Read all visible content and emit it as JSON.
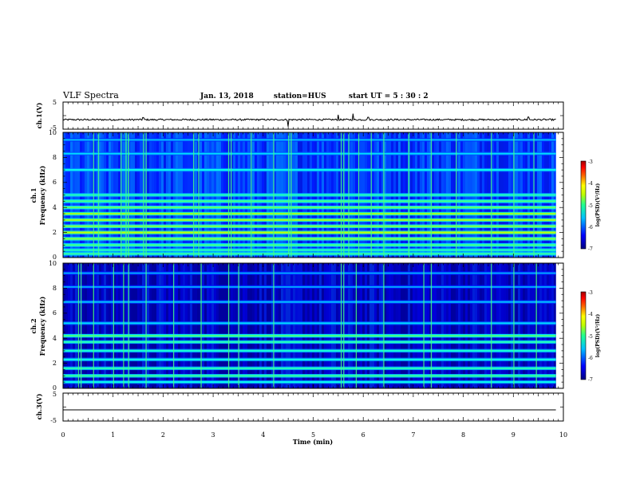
{
  "header": {
    "title": "VLF Spectra",
    "date": "Jan. 13, 2018",
    "station": "station=HUS",
    "start": "start UT =  5 : 30 : 2"
  },
  "colors": {
    "background": "#ffffff",
    "ink": "#000000",
    "spectrogram_base": "#00007f",
    "colormap": [
      "#00008f",
      "#0000ff",
      "#0080ff",
      "#00ffff",
      "#80ff80",
      "#ffff00",
      "#ff8000",
      "#ff0000",
      "#800000"
    ]
  },
  "chart_data": [
    {
      "type": "line",
      "id": "ch1-waveform",
      "ylabel": "ch.1(V)",
      "ylim": [
        -5,
        5
      ],
      "yticks": [
        "5",
        "-5"
      ],
      "x_range_min": [
        0,
        9.85
      ],
      "baseline_v": -1.5,
      "noise_v": 0.3,
      "spikes": [
        [
          1.6,
          0.8
        ],
        [
          4.5,
          -2.5
        ],
        [
          5.5,
          1.8
        ],
        [
          5.8,
          2.2
        ],
        [
          6.1,
          0.9
        ],
        [
          9.3,
          1.0
        ]
      ]
    },
    {
      "type": "heatmap",
      "id": "ch1-spectrogram",
      "ylabel": "ch.1\nFrequency (kHz)",
      "ylabel_line1": "ch.1",
      "ylabel_line2": "Frequency (kHz)",
      "ylim": [
        0,
        10
      ],
      "yticks": [
        "0",
        "2",
        "4",
        "6",
        "8",
        "10"
      ],
      "x_range_min": [
        0,
        9.85
      ],
      "background_level": -6.4,
      "bands_khz": [
        [
          0.3,
          -5.3
        ],
        [
          0.6,
          -5.4
        ],
        [
          1.0,
          -5.2
        ],
        [
          1.5,
          -5.0
        ],
        [
          2.0,
          -4.8
        ],
        [
          2.5,
          -5.0
        ],
        [
          3.0,
          -4.9
        ],
        [
          3.5,
          -4.9
        ],
        [
          4.0,
          -5.1
        ],
        [
          4.5,
          -5.2
        ],
        [
          5.0,
          -5.4
        ],
        [
          7.0,
          -5.6
        ],
        [
          8.3,
          -5.8
        ],
        [
          9.4,
          -5.9
        ]
      ],
      "events_min": [
        0.6,
        0.7,
        1.15,
        1.25,
        1.3,
        1.3,
        1.6,
        1.65,
        2.6,
        2.7,
        3.3,
        3.35,
        3.75,
        4.2,
        4.5,
        4.55,
        5.55,
        5.6,
        5.7,
        5.9,
        6.15,
        6.4,
        6.9,
        7.35,
        7.85,
        8.55,
        9.0,
        9.4
      ],
      "colorbar": {
        "label": "log(PSD)(V²/Hz)",
        "range": [
          -7,
          -3
        ],
        "ticks": [
          "-3",
          "-4",
          "-5",
          "-6",
          "-7"
        ]
      }
    },
    {
      "type": "heatmap",
      "id": "ch2-spectrogram",
      "ylabel": "ch.2\nFrequency (kHz)",
      "ylabel_line1": "ch.2",
      "ylabel_line2": "Frequency (kHz)",
      "ylim": [
        0,
        10
      ],
      "yticks": [
        "0",
        "2",
        "4",
        "6",
        "8",
        "10"
      ],
      "x_range_min": [
        0,
        9.85
      ],
      "background_level": -6.8,
      "bands_khz": [
        [
          0.5,
          -5.6
        ],
        [
          1.0,
          -5.3
        ],
        [
          1.6,
          -5.4
        ],
        [
          2.3,
          -5.6
        ],
        [
          3.0,
          -5.5
        ],
        [
          3.7,
          -5.4
        ],
        [
          4.2,
          -5.2
        ],
        [
          5.2,
          -5.8
        ],
        [
          6.9,
          -5.9
        ],
        [
          8.1,
          -6.0
        ],
        [
          9.2,
          -6.0
        ]
      ],
      "events_min": [
        0.3,
        0.35,
        0.6,
        1.0,
        1.2,
        1.3,
        1.65,
        2.2,
        2.75,
        3.3,
        3.5,
        4.2,
        5.55,
        5.6,
        5.85,
        6.4,
        7.2,
        7.35,
        8.55,
        9.0,
        9.45
      ],
      "colorbar": {
        "label": "log(PSD)(V²/Hz)",
        "range": [
          -7,
          -3
        ],
        "ticks": [
          "-3",
          "-4",
          "-5",
          "-6",
          "-7"
        ]
      }
    },
    {
      "type": "line",
      "id": "ch3-waveform",
      "ylabel": "ch.3(V)",
      "ylim": [
        -5,
        5
      ],
      "yticks": [
        "5",
        "-5"
      ],
      "x_range_min": [
        0,
        9.85
      ],
      "baseline_v": -1.0,
      "noise_v": 0.0,
      "spikes": []
    }
  ],
  "x_axis": {
    "label": "Time (min)",
    "range": [
      0,
      10
    ],
    "ticks": [
      "0",
      "1",
      "2",
      "3",
      "4",
      "5",
      "6",
      "7",
      "8",
      "9",
      "10"
    ]
  }
}
